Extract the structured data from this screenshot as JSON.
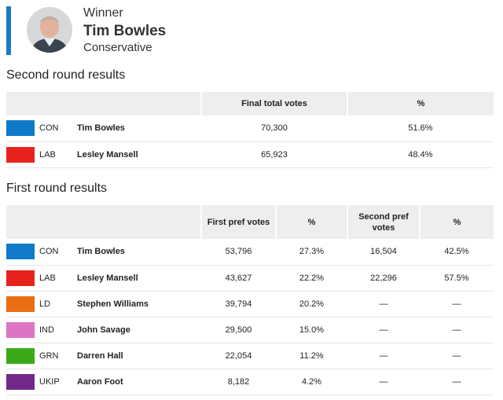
{
  "winner": {
    "label": "Winner",
    "name": "Tim Bowles",
    "party": "Conservative",
    "accent_color": "#1a7cc7"
  },
  "second_round": {
    "title": "Second round results",
    "headers": [
      "Final total votes",
      "%"
    ],
    "rows": [
      {
        "color": "#0f7ac9",
        "party": "CON",
        "candidate": "Tim Bowles",
        "votes": "70,300",
        "pct": "51.6%"
      },
      {
        "color": "#e8231d",
        "party": "LAB",
        "candidate": "Lesley Mansell",
        "votes": "65,923",
        "pct": "48.4%"
      }
    ]
  },
  "first_round": {
    "title": "First round results",
    "headers": [
      "First pref votes",
      "%",
      "Second pref votes",
      "%"
    ],
    "rows": [
      {
        "color": "#0f7ac9",
        "party": "CON",
        "candidate": "Tim Bowles",
        "votes": "53,796",
        "pct": "27.3%",
        "second_votes": "16,504",
        "second_pct": "42.5%"
      },
      {
        "color": "#e8231d",
        "party": "LAB",
        "candidate": "Lesley Mansell",
        "votes": "43,627",
        "pct": "22.2%",
        "second_votes": "22,296",
        "second_pct": "57.5%"
      },
      {
        "color": "#ea6e13",
        "party": "LD",
        "candidate": "Stephen Williams",
        "votes": "39,794",
        "pct": "20.2%",
        "second_votes": "—",
        "second_pct": "—"
      },
      {
        "color": "#dd74c4",
        "party": "IND",
        "candidate": "John Savage",
        "votes": "29,500",
        "pct": "15.0%",
        "second_votes": "—",
        "second_pct": "—"
      },
      {
        "color": "#3aa918",
        "party": "GRN",
        "candidate": "Darren Hall",
        "votes": "22,054",
        "pct": "11.2%",
        "second_votes": "—",
        "second_pct": "—"
      },
      {
        "color": "#722889",
        "party": "UKIP",
        "candidate": "Aaron Foot",
        "votes": "8,182",
        "pct": "4.2%",
        "second_votes": "—",
        "second_pct": "—"
      }
    ]
  }
}
